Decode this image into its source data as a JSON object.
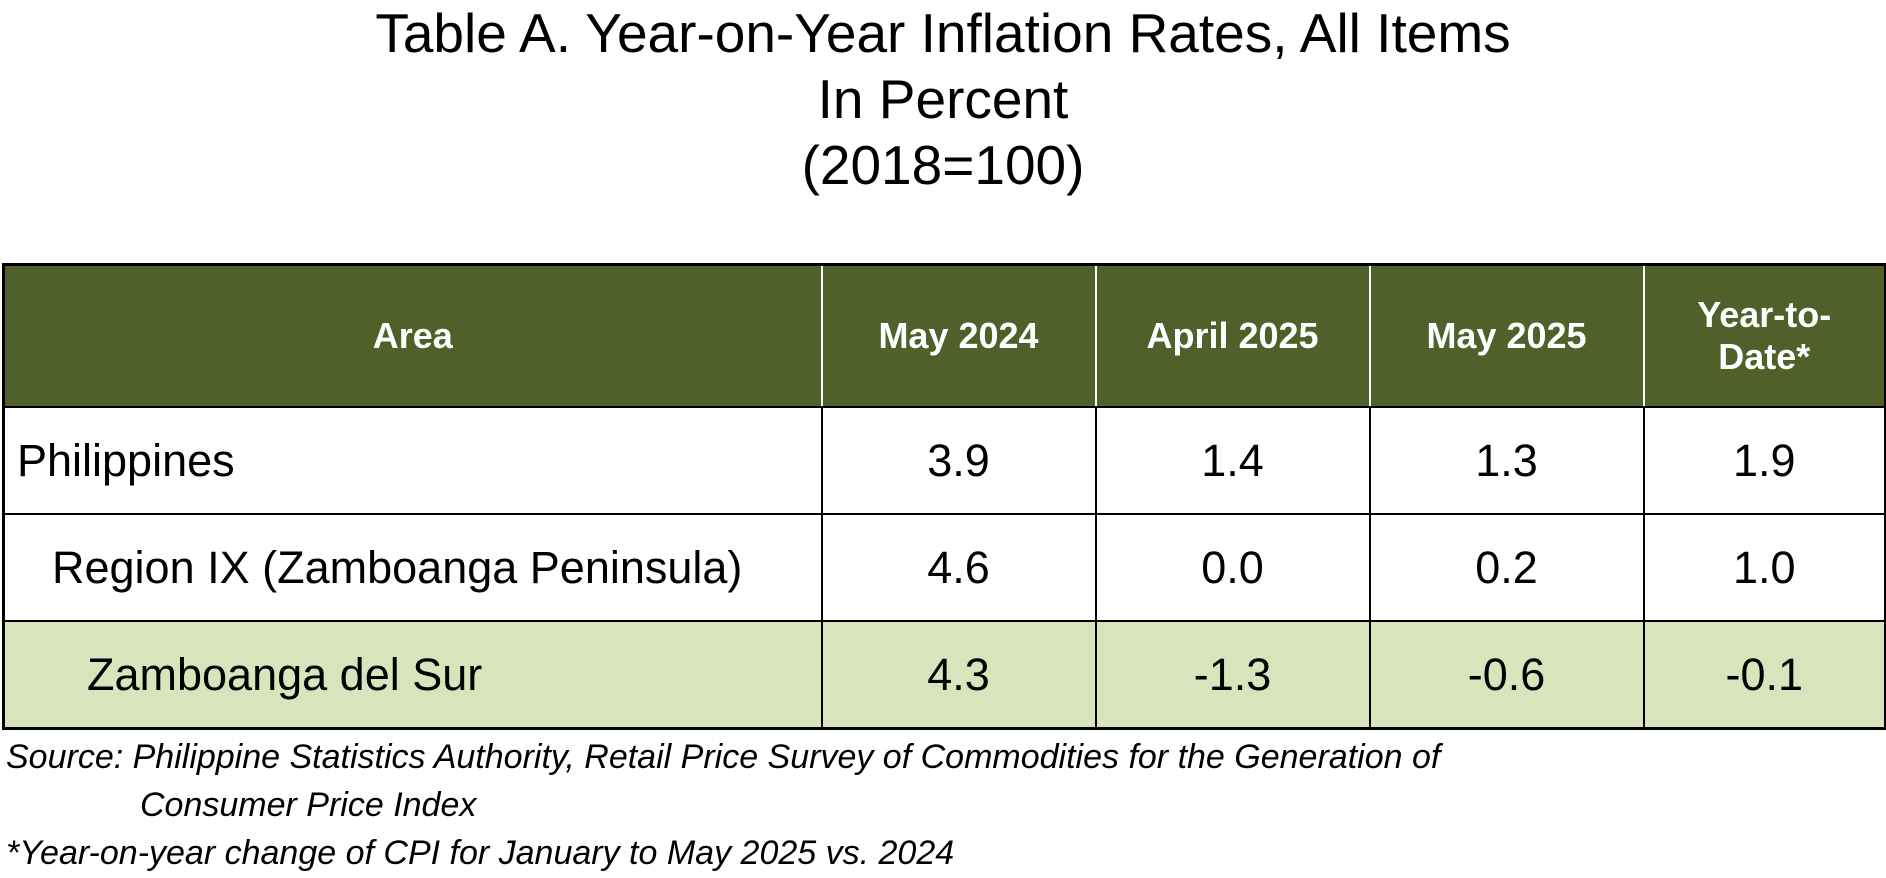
{
  "title": {
    "line1": "Table A.  Year-on-Year Inflation Rates, All Items",
    "line2": "In Percent",
    "line3": "(2018=100)"
  },
  "table": {
    "headers": [
      "Area",
      "May 2024",
      "April 2025",
      "May 2025",
      "Year-to-Date*"
    ],
    "rows": [
      {
        "area": "Philippines",
        "values": [
          "3.9",
          "1.4",
          "1.3",
          "1.9"
        ]
      },
      {
        "area": "Region IX (Zamboanga Peninsula)",
        "values": [
          "4.6",
          "0.0",
          "0.2",
          "1.0"
        ]
      },
      {
        "area": "Zamboanga del Sur",
        "values": [
          "4.3",
          "-1.3",
          "-0.6",
          "-0.1"
        ]
      }
    ]
  },
  "notes": {
    "source": "Source: Philippine Statistics Authority, Retail Price Survey of Commodities for the Generation of Consumer Price Index",
    "footnote": "*Year-on-year change of CPI for January to May 2025 vs. 2024"
  },
  "colors": {
    "header_bg": "#4f602a",
    "header_text": "#ffffff",
    "highlight_row_bg": "#d8e4bc"
  }
}
